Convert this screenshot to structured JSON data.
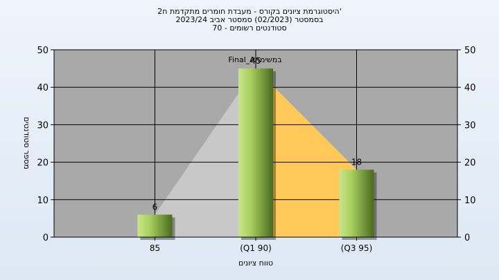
{
  "chart_data": {
    "type": "bar",
    "title_lines": [
      "היסטוגרמת ציונים בקורס - מעבדת חומרים מתקדמת ח2'",
      "בסמסטר  (02/2023)  סמסטר אביב 2023/24",
      "סטודנטים רשומים - 70"
    ],
    "xlabel": "טווח ציונים",
    "ylabel": "מספר סטודנטים",
    "ylim": [
      0,
      50
    ],
    "yticks": [
      0,
      10,
      20,
      30,
      40,
      50
    ],
    "grid": true,
    "categories": [
      "85",
      "(Q1 90)",
      "(Q3 95)"
    ],
    "values": [
      6,
      45,
      18
    ],
    "value_labels": [
      "6",
      "45",
      "18"
    ],
    "annotation": "Final_Aבמשימה",
    "colors": {
      "bar_light": "#c8e68a",
      "bar_dark": "#4a6a1e",
      "plot_bg": "#a9a9a9",
      "area_left": "#c8c8c8",
      "area_right": "#ffc95a"
    }
  }
}
